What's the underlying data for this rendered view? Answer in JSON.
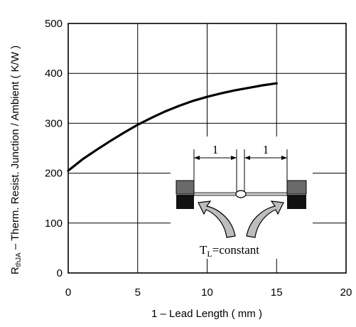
{
  "chart_data": {
    "type": "line",
    "x": [
      0,
      1,
      2,
      3,
      4,
      5,
      6,
      7,
      8,
      9,
      10,
      11,
      12,
      13,
      14,
      15
    ],
    "series": [
      {
        "values": [
          205,
          227,
          246,
          264,
          281,
          297,
          311,
          324,
          335,
          345,
          353,
          360,
          366,
          371,
          376,
          380
        ]
      }
    ],
    "xlim": [
      0,
      20
    ],
    "ylim": [
      0,
      500
    ],
    "xticks": [
      "0",
      "5",
      "10",
      "15",
      "20"
    ],
    "yticks": [
      "0",
      "100",
      "200",
      "300",
      "400",
      "500"
    ],
    "xlabel": "1 – Lead Length ( mm )",
    "ylabel": {
      "main": "R",
      "sub": "thJA",
      "rest": " – Therm. Resist. Junction / Ambient ( K/W )"
    },
    "grid": true,
    "line_color": "#000000",
    "inset": {
      "dim_left": "1",
      "dim_right": "1",
      "label_main": "T",
      "label_sub": "L",
      "label_rest": "=constant"
    }
  }
}
